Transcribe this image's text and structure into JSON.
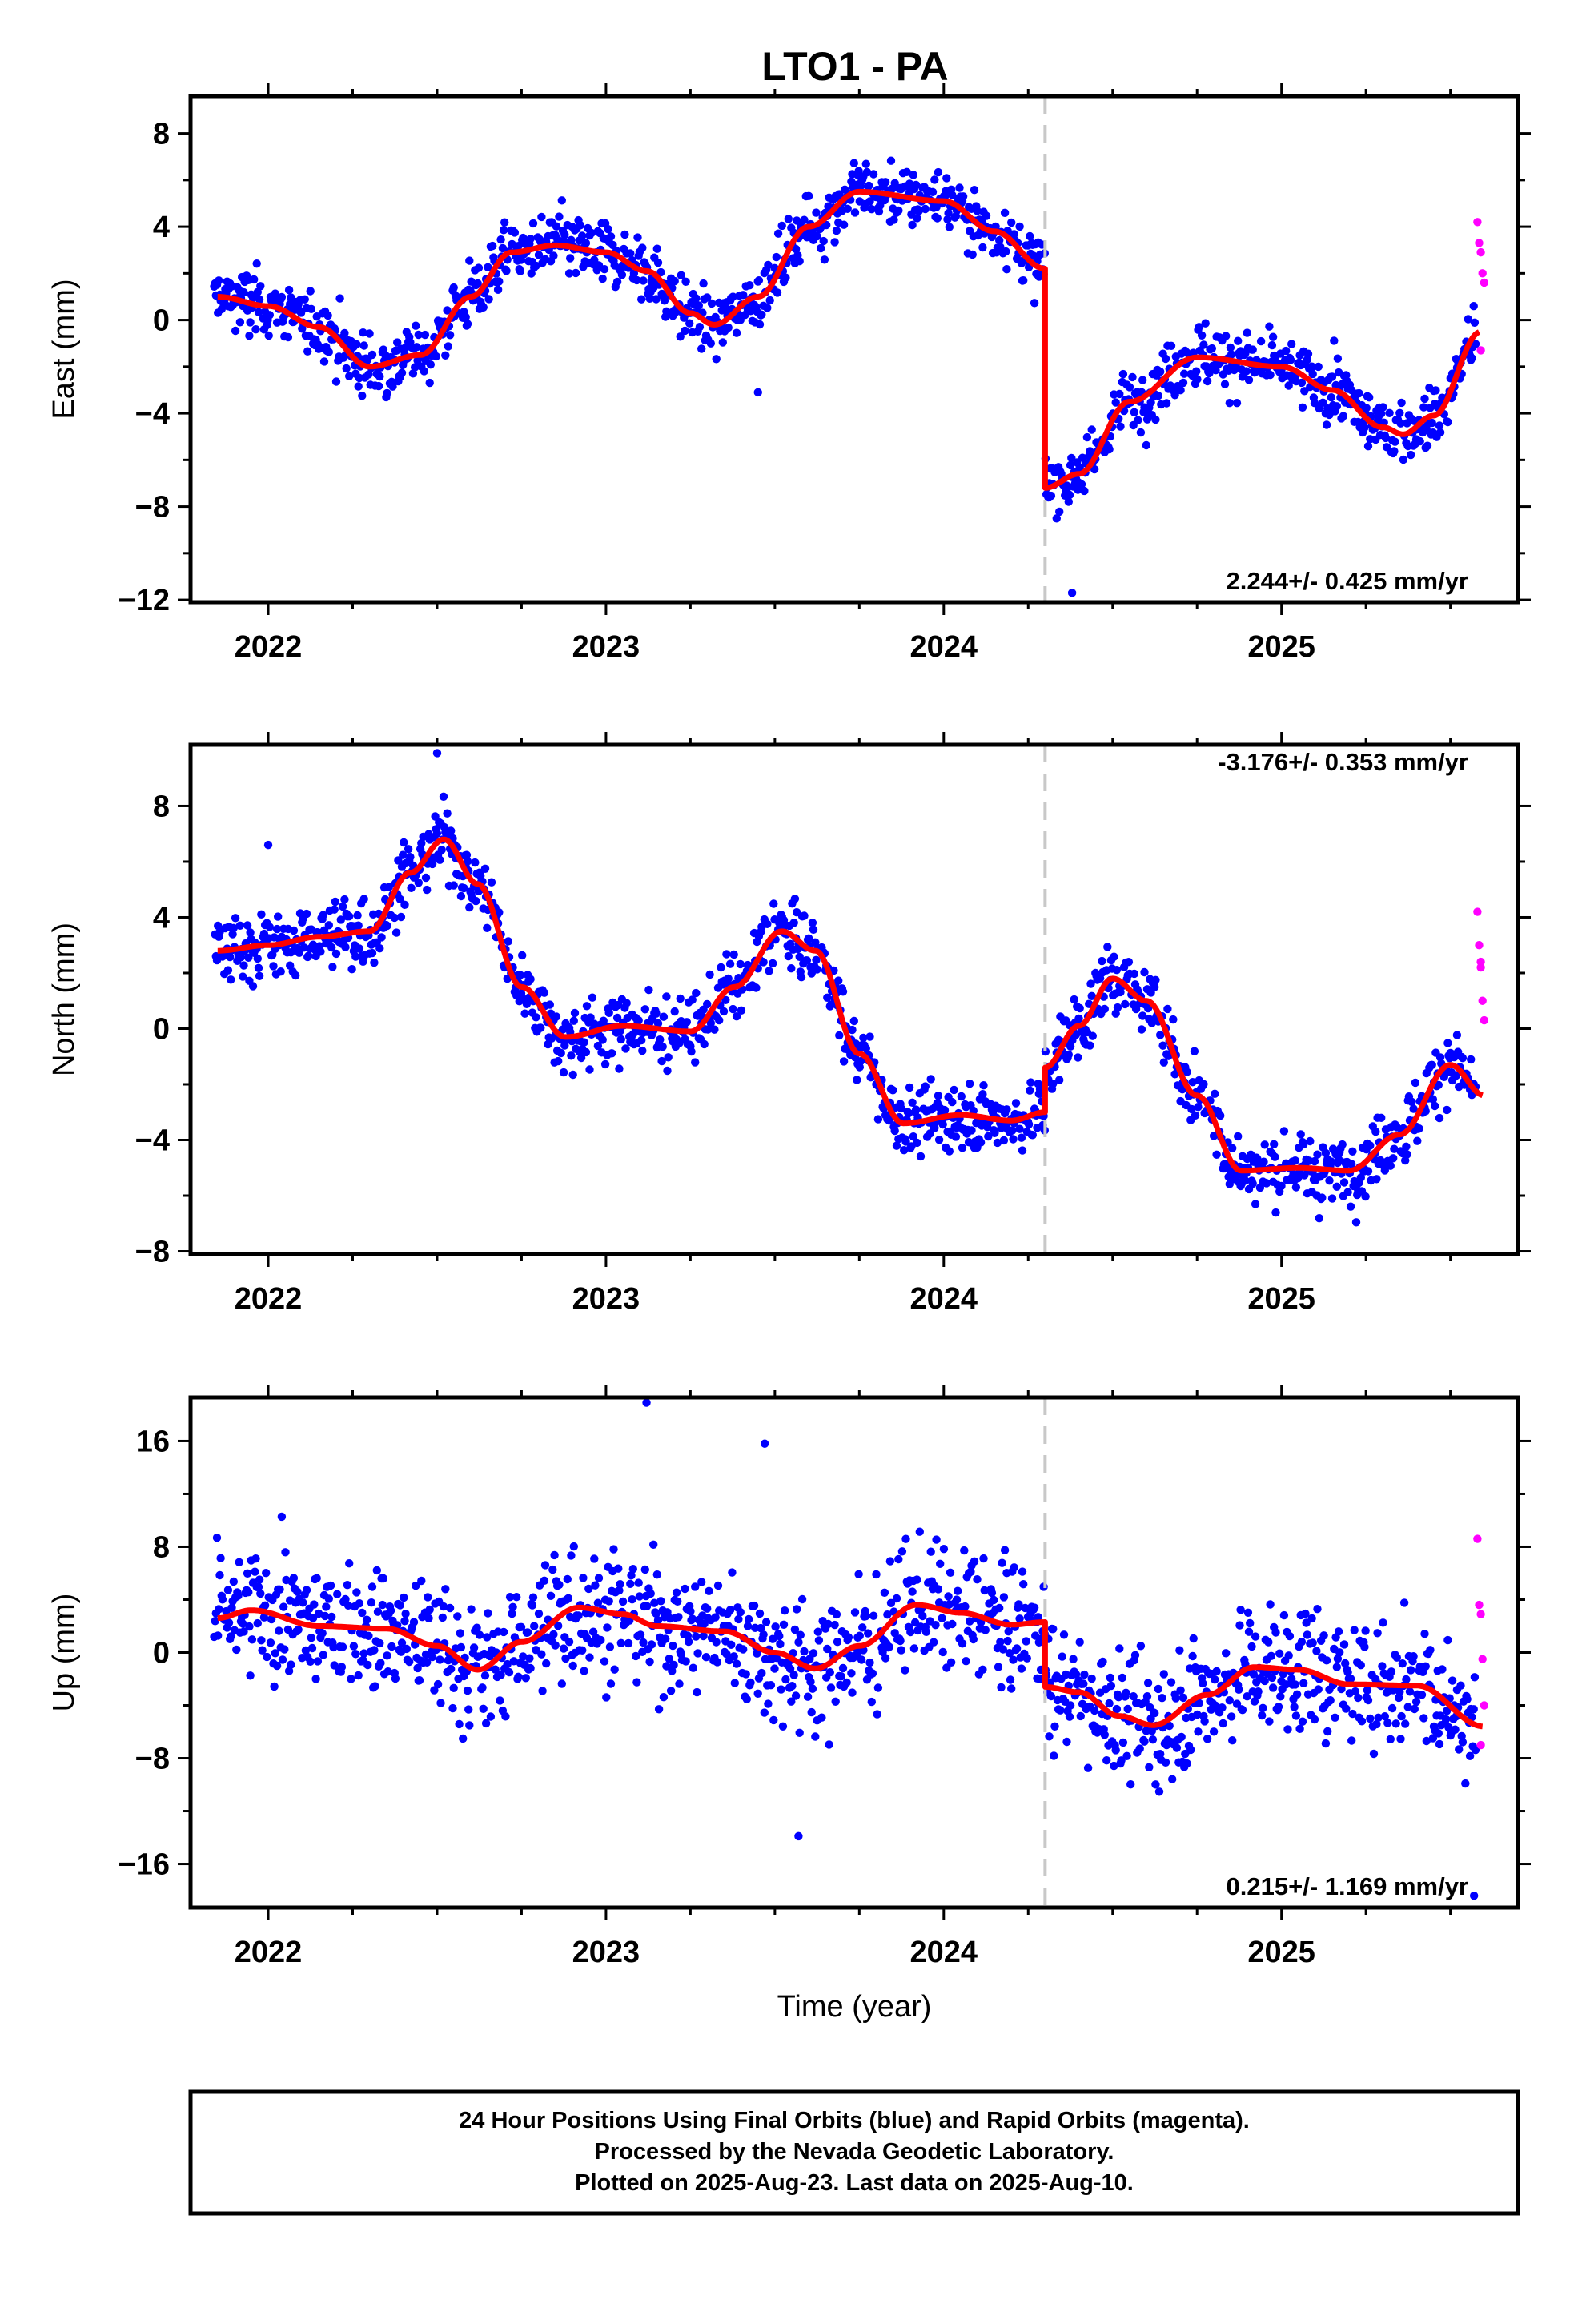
{
  "title": "LTO1 - PA",
  "chart_data": [
    {
      "type": "scatter",
      "panel": "east",
      "ylabel": "East (mm)",
      "xlabel": "",
      "xlim": [
        2021.77,
        2025.7
      ],
      "ylim": [
        -12.1,
        9.6
      ],
      "yticks": [
        8,
        4,
        0,
        -4,
        -8,
        -12
      ],
      "xticks": [
        2022,
        2023,
        2024,
        2025
      ],
      "grid": false,
      "rate": "2.244+/- 0.425 mm/yr",
      "rate_position": "bottom-right",
      "offset_epoch": 2024.3,
      "series": [
        {
          "color": "#0000ff",
          "trend": [
            [
              2021.85,
              1.0
            ],
            [
              2022.0,
              0.6
            ],
            [
              2022.15,
              -0.3
            ],
            [
              2022.3,
              -2.0
            ],
            [
              2022.45,
              -1.5
            ],
            [
              2022.6,
              1.0
            ],
            [
              2022.72,
              2.9
            ],
            [
              2022.85,
              3.2
            ],
            [
              2023.0,
              2.9
            ],
            [
              2023.12,
              2.1
            ],
            [
              2023.25,
              0.3
            ],
            [
              2023.32,
              -0.2
            ],
            [
              2023.45,
              1.0
            ],
            [
              2023.6,
              4.0
            ],
            [
              2023.75,
              5.5
            ],
            [
              2024.0,
              5.1
            ],
            [
              2024.15,
              3.8
            ],
            [
              2024.3,
              2.2
            ]
          ]
        },
        {
          "color": "#0000ff",
          "trend": [
            [
              2024.3,
              -7.2
            ],
            [
              2024.4,
              -6.6
            ],
            [
              2024.55,
              -3.5
            ],
            [
              2024.75,
              -1.6
            ],
            [
              2025.0,
              -2.0
            ],
            [
              2025.15,
              -3.0
            ],
            [
              2025.3,
              -4.6
            ],
            [
              2025.36,
              -4.9
            ],
            [
              2025.45,
              -4.1
            ],
            [
              2025.59,
              -0.5
            ]
          ]
        }
      ],
      "rapid_orbits": {
        "color": "#ff00ff",
        "x": [
          2025.58,
          2025.585,
          2025.59,
          2025.595,
          2025.6,
          2025.59
        ],
        "values": [
          4.2,
          3.3,
          2.9,
          2.0,
          1.6,
          -1.3
        ]
      },
      "outliers": [
        {
          "x": 2024.38,
          "value": -11.7
        },
        {
          "x": 2023.45,
          "value": -3.1
        }
      ]
    },
    {
      "type": "scatter",
      "panel": "north",
      "ylabel": "North (mm)",
      "xlabel": "",
      "xlim": [
        2021.77,
        2025.7
      ],
      "ylim": [
        -8.1,
        10.2
      ],
      "yticks": [
        8,
        4,
        0,
        -4,
        -8
      ],
      "xticks": [
        2022,
        2023,
        2024,
        2025
      ],
      "grid": false,
      "rate": "-3.176+/- 0.353 mm/yr",
      "rate_position": "top-right",
      "offset_epoch": 2024.3,
      "series": [
        {
          "color": "#0000ff",
          "trend": [
            [
              2021.85,
              2.8
            ],
            [
              2022.0,
              3.0
            ],
            [
              2022.15,
              3.3
            ],
            [
              2022.3,
              3.5
            ],
            [
              2022.42,
              5.6
            ],
            [
              2022.52,
              6.8
            ],
            [
              2022.62,
              5.2
            ],
            [
              2022.75,
              1.5
            ],
            [
              2022.88,
              -0.3
            ],
            [
              2023.05,
              0.1
            ],
            [
              2023.25,
              -0.1
            ],
            [
              2023.38,
              1.5
            ],
            [
              2023.52,
              3.5
            ],
            [
              2023.62,
              2.8
            ],
            [
              2023.75,
              -0.9
            ],
            [
              2023.88,
              -3.4
            ],
            [
              2024.05,
              -3.1
            ],
            [
              2024.2,
              -3.3
            ],
            [
              2024.3,
              -3.0
            ]
          ]
        },
        {
          "color": "#0000ff",
          "trend": [
            [
              2024.3,
              -1.4
            ],
            [
              2024.4,
              0.1
            ],
            [
              2024.5,
              1.8
            ],
            [
              2024.6,
              1.0
            ],
            [
              2024.75,
              -2.4
            ],
            [
              2024.88,
              -5.1
            ],
            [
              2025.05,
              -5.0
            ],
            [
              2025.2,
              -5.1
            ],
            [
              2025.35,
              -3.8
            ],
            [
              2025.5,
              -1.3
            ],
            [
              2025.6,
              -2.4
            ]
          ]
        }
      ],
      "rapid_orbits": {
        "color": "#ff00ff",
        "x": [
          2025.58,
          2025.585,
          2025.59,
          2025.595,
          2025.6,
          2025.59
        ],
        "values": [
          4.2,
          3.0,
          2.4,
          1.0,
          0.3,
          2.2
        ]
      },
      "outliers": [
        {
          "x": 2022.5,
          "value": 9.9
        },
        {
          "x": 2022.0,
          "value": 6.6
        }
      ]
    },
    {
      "type": "scatter",
      "panel": "up",
      "ylabel": "Up (mm)",
      "xlabel": "Time (year)",
      "xlim": [
        2021.77,
        2025.7
      ],
      "ylim": [
        -19.3,
        19.3
      ],
      "yticks": [
        16,
        8,
        0,
        -8,
        -16
      ],
      "xticks": [
        2022,
        2023,
        2024,
        2025
      ],
      "grid": false,
      "rate": "0.215+/- 1.169 mm/yr",
      "rate_position": "bottom-right",
      "offset_epoch": 2024.3,
      "series": [
        {
          "color": "#0000ff",
          "trend": [
            [
              2021.85,
              2.6
            ],
            [
              2021.95,
              3.2
            ],
            [
              2022.15,
              2.0
            ],
            [
              2022.35,
              1.8
            ],
            [
              2022.5,
              0.5
            ],
            [
              2022.62,
              -1.3
            ],
            [
              2022.75,
              0.8
            ],
            [
              2022.92,
              3.4
            ],
            [
              2023.05,
              2.9
            ],
            [
              2023.15,
              2.0
            ],
            [
              2023.35,
              1.6
            ],
            [
              2023.5,
              0.0
            ],
            [
              2023.62,
              -1.2
            ],
            [
              2023.75,
              0.5
            ],
            [
              2023.92,
              3.6
            ],
            [
              2024.05,
              3.0
            ],
            [
              2024.2,
              2.1
            ],
            [
              2024.3,
              2.3
            ]
          ]
        },
        {
          "color": "#0000ff",
          "trend": [
            [
              2024.3,
              -2.6
            ],
            [
              2024.4,
              -3.0
            ],
            [
              2024.52,
              -4.8
            ],
            [
              2024.62,
              -5.5
            ],
            [
              2024.78,
              -3.2
            ],
            [
              2024.92,
              -1.1
            ],
            [
              2025.05,
              -1.3
            ],
            [
              2025.2,
              -2.4
            ],
            [
              2025.4,
              -2.5
            ],
            [
              2025.6,
              -5.6
            ]
          ]
        }
      ],
      "rapid_orbits": {
        "color": "#ff00ff",
        "x": [
          2025.58,
          2025.585,
          2025.59,
          2025.595,
          2025.6,
          2025.59
        ],
        "values": [
          8.6,
          3.6,
          2.9,
          -0.5,
          -4.0,
          -7.0
        ]
      },
      "outliers": [
        {
          "x": 2023.12,
          "value": 18.9
        },
        {
          "x": 2023.47,
          "value": 15.8
        },
        {
          "x": 2023.57,
          "value": -13.9
        },
        {
          "x": 2025.57,
          "value": -18.4
        }
      ]
    }
  ],
  "footer": {
    "line1": "24 Hour Positions Using Final Orbits (blue) and Rapid Orbits (magenta).",
    "line2": "Processed by the Nevada Geodetic Laboratory.",
    "line3": "Plotted on 2025-Aug-23. Last data on 2025-Aug-10."
  },
  "colors": {
    "final_orbits": "#0000ff",
    "rapid_orbits": "#ff00ff",
    "model": "#ff0000",
    "offset_line": "#c8c8c8"
  }
}
